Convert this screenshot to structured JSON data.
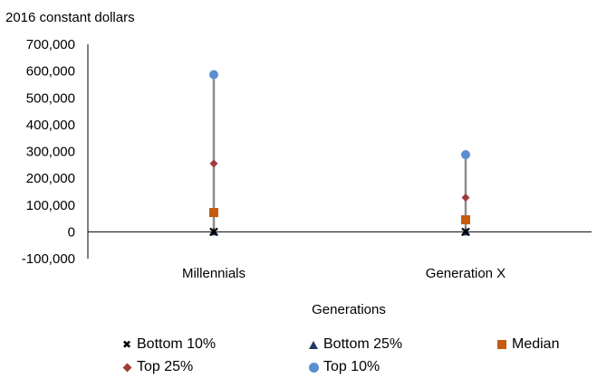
{
  "chart_data": {
    "type": "scatter",
    "title": "",
    "ylabel": "2016 constant dollars",
    "xlabel": "Generations",
    "categories": [
      "Millennials",
      "Generation X"
    ],
    "ylim": [
      -100000,
      700000
    ],
    "yticks": [
      "700,000",
      "600,000",
      "500,000",
      "400,000",
      "300,000",
      "200,000",
      "100,000",
      "0",
      "-100,000"
    ],
    "ytick_values": [
      700000,
      600000,
      500000,
      400000,
      300000,
      200000,
      100000,
      0,
      -100000
    ],
    "grid": false,
    "legend_position": "bottom",
    "series": [
      {
        "name": "Bottom 10%",
        "marker": "x",
        "color": "#000000",
        "values": [
          0,
          0
        ]
      },
      {
        "name": "Bottom 25%",
        "marker": "triangle",
        "color": "#1f3864",
        "values": [
          0,
          0
        ]
      },
      {
        "name": "Median",
        "marker": "square",
        "color": "#c55a11",
        "values": [
          72000,
          45000
        ]
      },
      {
        "name": "Top 25%",
        "marker": "diamond",
        "color": "#9e3c3c",
        "values": [
          255000,
          128000
        ]
      },
      {
        "name": "Top 10%",
        "marker": "circle",
        "color": "#5b8ed1",
        "values": [
          587000,
          288000
        ]
      }
    ],
    "range_line_color": "#8c8c8c"
  }
}
